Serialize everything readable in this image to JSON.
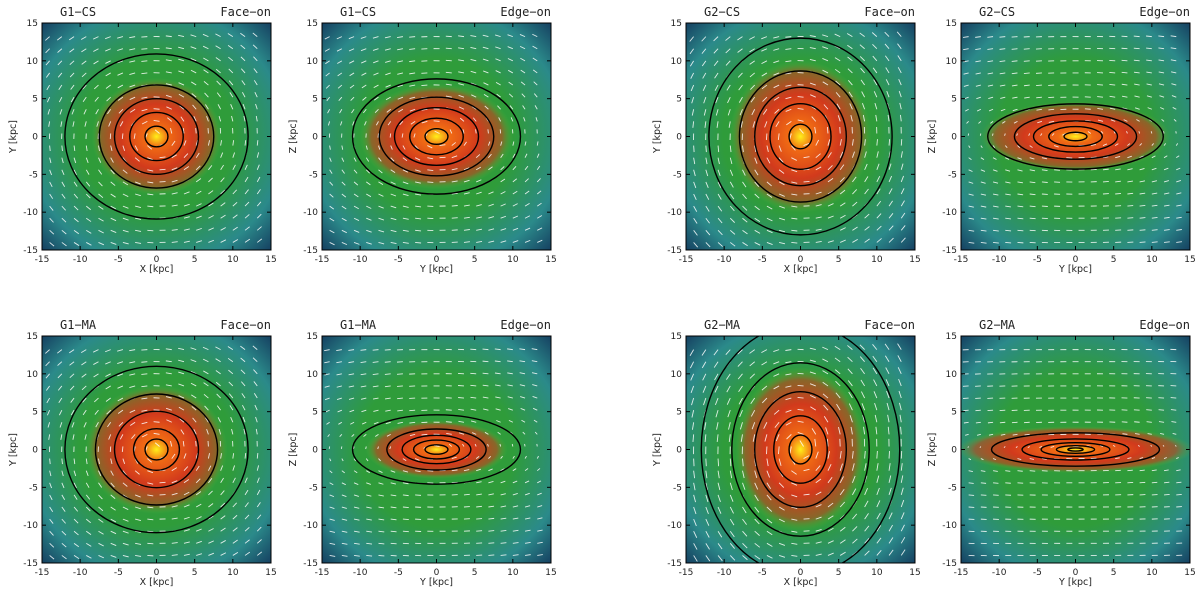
{
  "figure": {
    "description_free": true
  },
  "chart_data": [
    {
      "type": "heatmap",
      "title_left": "G1−CS",
      "title_right": "Face−on",
      "xlabel": "X [kpc]",
      "ylabel": "Y [kpc]",
      "xlim": [
        -15,
        15
      ],
      "ylim": [
        -15,
        15
      ],
      "xticks": [
        -15,
        -10,
        -5,
        0,
        5,
        10,
        15
      ],
      "yticks": [
        -15,
        -10,
        -5,
        0,
        5,
        10,
        15
      ],
      "core": {
        "x": 0,
        "y": 0,
        "rx": 5.5,
        "ry": 5.0
      },
      "contours": [
        1.5,
        3.5,
        5.5,
        7.5,
        12.0
      ]
    },
    {
      "type": "heatmap",
      "title_left": "G1−CS",
      "title_right": "Edge−on",
      "xlabel": "Y [kpc]",
      "ylabel": "Z [kpc]",
      "xlim": [
        -15,
        15
      ],
      "ylim": [
        -15,
        15
      ],
      "xticks": [
        -15,
        -10,
        -5,
        0,
        5,
        10,
        15
      ],
      "yticks": [
        -15,
        -10,
        -5,
        0,
        5,
        10,
        15
      ],
      "core": {
        "x": 0,
        "y": 0,
        "rx": 6.5,
        "ry": 4.5
      },
      "contours": [
        1.5,
        3.5,
        5.5,
        7.5,
        11.0
      ]
    },
    {
      "type": "heatmap",
      "title_left": "G2−CS",
      "title_right": "Face−on",
      "xlabel": "X [kpc]",
      "ylabel": "Y [kpc]",
      "xlim": [
        -15,
        15
      ],
      "ylim": [
        -15,
        15
      ],
      "xticks": [
        -15,
        -10,
        -5,
        0,
        5,
        10,
        15
      ],
      "yticks": [
        -15,
        -10,
        -5,
        0,
        5,
        10,
        15
      ],
      "core": {
        "x": 0,
        "y": 0,
        "rx": 6.0,
        "ry": 6.5
      },
      "contours": [
        1.5,
        4.0,
        6.0,
        8.0,
        12.0
      ]
    },
    {
      "type": "heatmap",
      "title_left": "G2−CS",
      "title_right": "Edge−on",
      "xlabel": "Y [kpc]",
      "ylabel": "Z [kpc]",
      "xlim": [
        -15,
        15
      ],
      "ylim": [
        -15,
        15
      ],
      "xticks": [
        -15,
        -10,
        -5,
        0,
        5,
        10,
        15
      ],
      "yticks": [
        -15,
        -10,
        -5,
        0,
        5,
        10,
        15
      ],
      "core": {
        "x": 0,
        "y": 0,
        "rx": 8.0,
        "ry": 3.0
      },
      "contours": [
        1.5,
        3.5,
        5.5,
        8.0,
        11.5
      ]
    },
    {
      "type": "heatmap",
      "title_left": "G1−MA",
      "title_right": "Face−on",
      "xlabel": "X [kpc]",
      "ylabel": "Y [kpc]",
      "xlim": [
        -15,
        15
      ],
      "ylim": [
        -15,
        15
      ],
      "xticks": [
        -15,
        -10,
        -5,
        0,
        5,
        10,
        15
      ],
      "yticks": [
        -15,
        -10,
        -5,
        0,
        5,
        10,
        15
      ],
      "core": {
        "x": 0,
        "y": 0,
        "rx": 6.0,
        "ry": 5.5
      },
      "contours": [
        1.5,
        3.0,
        5.5,
        8.0,
        12.0
      ]
    },
    {
      "type": "heatmap",
      "title_left": "G1−MA",
      "title_right": "Edge−on",
      "xlabel": "Y [kpc]",
      "ylabel": "Z [kpc]",
      "xlim": [
        -15,
        15
      ],
      "ylim": [
        -15,
        15
      ],
      "xticks": [
        -15,
        -10,
        -5,
        0,
        5,
        10,
        15
      ],
      "yticks": [
        -15,
        -10,
        -5,
        0,
        5,
        10,
        15
      ],
      "core": {
        "x": 0,
        "y": 0,
        "rx": 6.0,
        "ry": 2.5
      },
      "contours": [
        1.5,
        3.0,
        4.5,
        6.5,
        11.0
      ]
    },
    {
      "type": "heatmap",
      "title_left": "G2−MA",
      "title_right": "Face−on",
      "xlabel": "X [kpc]",
      "ylabel": "Y [kpc]",
      "xlim": [
        -15,
        15
      ],
      "ylim": [
        -15,
        15
      ],
      "xticks": [
        -15,
        -10,
        -5,
        0,
        5,
        10,
        15
      ],
      "yticks": [
        -15,
        -10,
        -5,
        0,
        5,
        10,
        15
      ],
      "core": {
        "x": 0,
        "y": 0,
        "rx": 5.5,
        "ry": 7.0
      },
      "contours": [
        1.5,
        3.5,
        6.0,
        9.0,
        13.0
      ]
    },
    {
      "type": "heatmap",
      "title_left": "G2−MA",
      "title_right": "Edge−on",
      "xlabel": "Y [kpc]",
      "ylabel": "Z [kpc]",
      "xlim": [
        -15,
        15
      ],
      "ylim": [
        -15,
        15
      ],
      "xticks": [
        -15,
        -10,
        -5,
        0,
        5,
        10,
        15
      ],
      "yticks": [
        -15,
        -10,
        -5,
        0,
        5,
        10,
        15
      ],
      "core": {
        "x": 0,
        "y": 0,
        "rx": 10.0,
        "ry": 2.0
      },
      "contours": [
        1.0,
        2.5,
        4.5,
        7.0,
        11.0
      ]
    }
  ],
  "colors": {
    "deep": "#0f2a55",
    "teal": "#2b8a8a",
    "green": "#2f9c3a",
    "light_green": "#5cc33a",
    "red": "#d23a1c",
    "orange": "#f06a14",
    "yellow": "#ffef1a",
    "contour": "#000000",
    "vector": "#ffffff"
  }
}
